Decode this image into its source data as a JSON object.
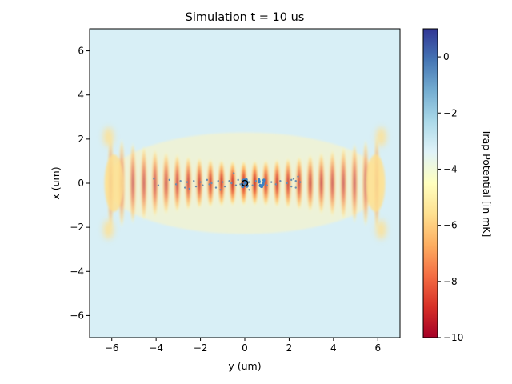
{
  "chart_data": {
    "type": "heatmap",
    "title": "Simulation t = 10 us",
    "xlabel": "y (um)",
    "ylabel": "x (um)",
    "xlim": [
      -7,
      7
    ],
    "ylim": [
      -7,
      7
    ],
    "xticks": [
      -6,
      -4,
      -2,
      0,
      2,
      4,
      6
    ],
    "yticks": [
      -6,
      -4,
      -2,
      0,
      2,
      4,
      6
    ],
    "xtick_labels": [
      "−6",
      "−4",
      "−2",
      "0",
      "2",
      "4",
      "6"
    ],
    "ytick_labels": [
      "−6",
      "−4",
      "−2",
      "0",
      "2",
      "4",
      "6"
    ],
    "colorbar": {
      "label": "Trap Potential [in mK]",
      "range": [
        -10,
        1
      ],
      "ticks": [
        -10,
        -8,
        -6,
        -4,
        -2,
        0
      ],
      "tick_labels": [
        "−10",
        "−8",
        "−6",
        "−4",
        "−2",
        "0"
      ],
      "colormap": "RdYlBu",
      "stops": [
        "#a50026",
        "#d73027",
        "#f46d43",
        "#fdae61",
        "#fee090",
        "#ffffbf",
        "#e0f3f8",
        "#abd9e9",
        "#74add1",
        "#4575b4",
        "#313695"
      ]
    },
    "field": {
      "fringe_period_um": 0.5,
      "axial_extent_um": 6.3,
      "center_min_mK": -10,
      "side_lobe_x_um": 2.1
    },
    "tweezer": {
      "center": [
        0,
        0
      ],
      "color": "#000000"
    },
    "atom_clusters": [
      {
        "center": [
          0.75,
          0.0
        ],
        "color": "#3b82c4"
      },
      {
        "center": [
          0.0,
          0.0
        ],
        "color": "#3b82c4"
      }
    ],
    "scattered_atoms": [
      [
        -4.1,
        0.2
      ],
      [
        -3.9,
        -0.1
      ],
      [
        -3.4,
        0.15
      ],
      [
        -3.1,
        -0.05
      ],
      [
        -2.9,
        0.1
      ],
      [
        -2.7,
        -0.2
      ],
      [
        -2.6,
        0.05
      ],
      [
        -2.5,
        -0.25
      ],
      [
        -2.3,
        0.1
      ],
      [
        -2.2,
        -0.15
      ],
      [
        -2.0,
        0.05
      ],
      [
        -1.9,
        -0.1
      ],
      [
        -1.7,
        0.15
      ],
      [
        -1.6,
        -0.05
      ],
      [
        -1.5,
        0.0
      ],
      [
        -1.3,
        -0.2
      ],
      [
        -1.2,
        0.1
      ],
      [
        -1.0,
        0.05
      ],
      [
        -0.9,
        -0.15
      ],
      [
        -0.7,
        0.1
      ],
      [
        -0.6,
        0.0
      ],
      [
        -0.4,
        -0.1
      ],
      [
        -0.3,
        0.15
      ],
      [
        -0.2,
        -0.05
      ],
      [
        0.2,
        0.05
      ],
      [
        0.35,
        -0.1
      ],
      [
        0.5,
        0.1
      ],
      [
        1.0,
        -0.1
      ],
      [
        1.2,
        0.05
      ],
      [
        1.4,
        -0.05
      ],
      [
        1.6,
        0.1
      ],
      [
        1.9,
        0.0
      ],
      [
        2.1,
        -0.15
      ],
      [
        2.2,
        0.2
      ],
      [
        2.3,
        -0.2
      ],
      [
        2.4,
        0.3
      ],
      [
        2.5,
        0.05
      ],
      [
        2.3,
        0.1
      ],
      [
        2.1,
        0.15
      ],
      [
        -0.5,
        0.45
      ],
      [
        0.2,
        -0.3
      ],
      [
        -1.1,
        -0.3
      ]
    ]
  }
}
